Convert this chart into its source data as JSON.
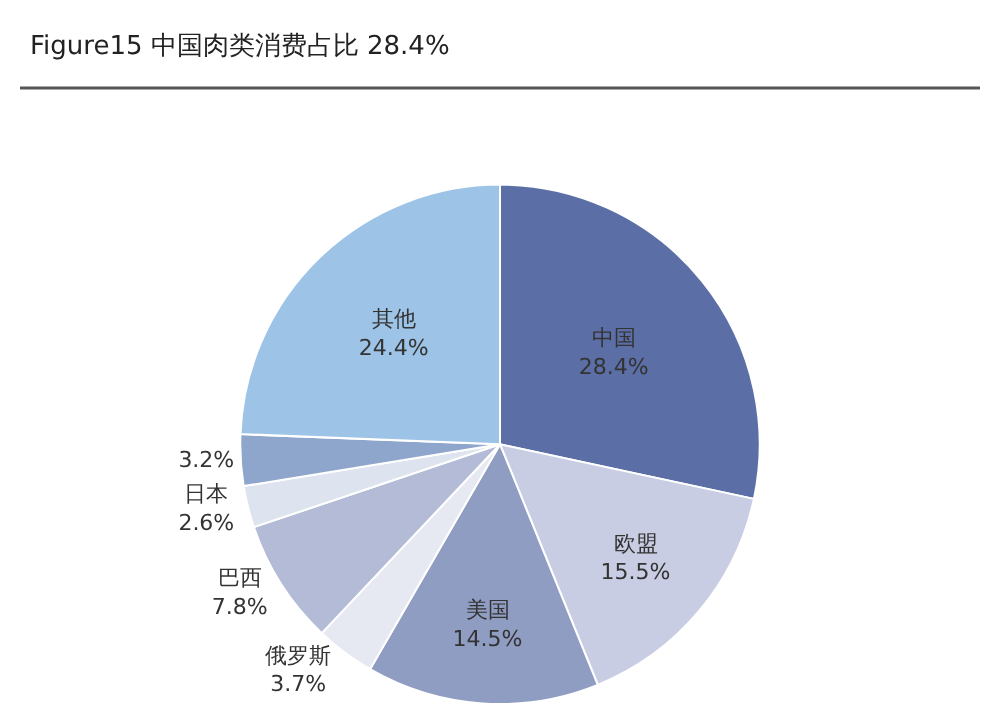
{
  "chart_data": {
    "type": "pie",
    "title": "Figure15 中国肉类消费占比 28.4%",
    "categories": [
      "中国",
      "欧盟",
      "美国",
      "俄罗斯",
      "巴西",
      "日本",
      null,
      "其他"
    ],
    "values": [
      28.4,
      15.5,
      14.5,
      3.7,
      7.8,
      2.6,
      3.2,
      24.4
    ],
    "value_labels": [
      "28.4%",
      "15.5%",
      "14.5%",
      "3.7%",
      "7.8%",
      "2.6%",
      "3.2%",
      "24.4%"
    ],
    "colors": [
      "#5b6fa6",
      "#c9cde3",
      "#8f9dc2",
      "#e6e8f2",
      "#b3bbd6",
      "#dde3ef",
      "#8ea5cc",
      "#9dc3e6"
    ],
    "legend": false
  }
}
